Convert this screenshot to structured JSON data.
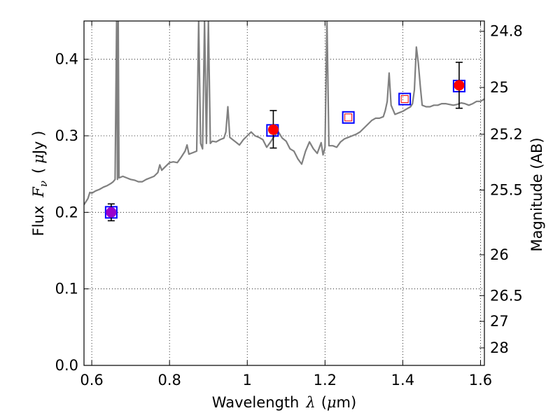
{
  "chart_data": {
    "type": "scatter",
    "xlabel": "Wavelength",
    "xlabel_symbol": "λ",
    "xlabel_unit_open": "(",
    "xlabel_unit_mu": "μ",
    "xlabel_unit_rest": "m)",
    "ylabel": "Flux",
    "ylabel_symbol": "F",
    "ylabel_subscript": "ν",
    "ylabel_unit_open": "(",
    "ylabel_unit_mu": "μ",
    "ylabel_unit_rest": "Jy )",
    "y2label": "Magnitude (AB)",
    "xlim": [
      0.58,
      1.61
    ],
    "ylim": [
      0.0,
      0.45
    ],
    "grid": true,
    "x_ticks": [
      {
        "value": 0.6,
        "label": "0.6"
      },
      {
        "value": 0.8,
        "label": "0.8"
      },
      {
        "value": 1.0,
        "label": "1"
      },
      {
        "value": 1.2,
        "label": "1.2"
      },
      {
        "value": 1.4,
        "label": "1.4"
      },
      {
        "value": 1.6,
        "label": "1.6"
      }
    ],
    "y_ticks": [
      {
        "value": 0.0,
        "label": "0.0"
      },
      {
        "value": 0.1,
        "label": "0.1"
      },
      {
        "value": 0.2,
        "label": "0.2"
      },
      {
        "value": 0.3,
        "label": "0.3"
      },
      {
        "value": 0.4,
        "label": "0.4"
      }
    ],
    "y2_ticks": [
      {
        "value": 24.8,
        "label": "24.8"
      },
      {
        "value": 25.0,
        "label": "25"
      },
      {
        "value": 25.2,
        "label": "25.2"
      },
      {
        "value": 25.5,
        "label": "25.5"
      },
      {
        "value": 26.0,
        "label": "26"
      },
      {
        "value": 26.5,
        "label": "26.5"
      },
      {
        "value": 27.0,
        "label": "27"
      },
      {
        "value": 28.0,
        "label": "28"
      }
    ],
    "series": [
      {
        "kind": "line",
        "color": "#808080",
        "points": [
          [
            0.58,
            0.21
          ],
          [
            0.59,
            0.218
          ],
          [
            0.595,
            0.226
          ],
          [
            0.6,
            0.225
          ],
          [
            0.61,
            0.228
          ],
          [
            0.62,
            0.23
          ],
          [
            0.63,
            0.233
          ],
          [
            0.64,
            0.235
          ],
          [
            0.65,
            0.238
          ],
          [
            0.655,
            0.24
          ],
          [
            0.66,
            0.243
          ],
          [
            0.664,
            0.45
          ],
          [
            0.666,
            0.243
          ],
          [
            0.668,
            0.45
          ],
          [
            0.67,
            0.245
          ],
          [
            0.68,
            0.247
          ],
          [
            0.69,
            0.245
          ],
          [
            0.7,
            0.243
          ],
          [
            0.71,
            0.242
          ],
          [
            0.72,
            0.24
          ],
          [
            0.73,
            0.24
          ],
          [
            0.74,
            0.243
          ],
          [
            0.75,
            0.245
          ],
          [
            0.76,
            0.247
          ],
          [
            0.77,
            0.252
          ],
          [
            0.775,
            0.262
          ],
          [
            0.78,
            0.255
          ],
          [
            0.79,
            0.26
          ],
          [
            0.8,
            0.265
          ],
          [
            0.81,
            0.266
          ],
          [
            0.82,
            0.265
          ],
          [
            0.83,
            0.272
          ],
          [
            0.84,
            0.28
          ],
          [
            0.845,
            0.288
          ],
          [
            0.85,
            0.276
          ],
          [
            0.86,
            0.278
          ],
          [
            0.87,
            0.28
          ],
          [
            0.875,
            0.45
          ],
          [
            0.88,
            0.29
          ],
          [
            0.885,
            0.283
          ],
          [
            0.89,
            0.45
          ],
          [
            0.895,
            0.29
          ],
          [
            0.9,
            0.45
          ],
          [
            0.905,
            0.29
          ],
          [
            0.91,
            0.293
          ],
          [
            0.92,
            0.292
          ],
          [
            0.93,
            0.295
          ],
          [
            0.94,
            0.297
          ],
          [
            0.945,
            0.305
          ],
          [
            0.95,
            0.338
          ],
          [
            0.955,
            0.298
          ],
          [
            0.96,
            0.296
          ],
          [
            0.97,
            0.292
          ],
          [
            0.98,
            0.288
          ],
          [
            0.99,
            0.295
          ],
          [
            1.0,
            0.3
          ],
          [
            1.01,
            0.305
          ],
          [
            1.02,
            0.3
          ],
          [
            1.03,
            0.298
          ],
          [
            1.04,
            0.295
          ],
          [
            1.05,
            0.285
          ],
          [
            1.06,
            0.292
          ],
          [
            1.07,
            0.3
          ],
          [
            1.08,
            0.305
          ],
          [
            1.09,
            0.297
          ],
          [
            1.1,
            0.293
          ],
          [
            1.11,
            0.283
          ],
          [
            1.12,
            0.28
          ],
          [
            1.13,
            0.27
          ],
          [
            1.14,
            0.263
          ],
          [
            1.15,
            0.28
          ],
          [
            1.16,
            0.292
          ],
          [
            1.17,
            0.283
          ],
          [
            1.18,
            0.277
          ],
          [
            1.19,
            0.291
          ],
          [
            1.195,
            0.275
          ],
          [
            1.2,
            0.285
          ],
          [
            1.205,
            0.45
          ],
          [
            1.21,
            0.287
          ],
          [
            1.22,
            0.287
          ],
          [
            1.23,
            0.285
          ],
          [
            1.24,
            0.292
          ],
          [
            1.25,
            0.296
          ],
          [
            1.26,
            0.298
          ],
          [
            1.27,
            0.3
          ],
          [
            1.28,
            0.302
          ],
          [
            1.29,
            0.305
          ],
          [
            1.3,
            0.31
          ],
          [
            1.31,
            0.315
          ],
          [
            1.32,
            0.32
          ],
          [
            1.33,
            0.323
          ],
          [
            1.34,
            0.323
          ],
          [
            1.35,
            0.325
          ],
          [
            1.355,
            0.333
          ],
          [
            1.36,
            0.345
          ],
          [
            1.365,
            0.382
          ],
          [
            1.37,
            0.34
          ],
          [
            1.38,
            0.328
          ],
          [
            1.39,
            0.33
          ],
          [
            1.4,
            0.332
          ],
          [
            1.41,
            0.335
          ],
          [
            1.42,
            0.338
          ],
          [
            1.425,
            0.342
          ],
          [
            1.43,
            0.36
          ],
          [
            1.435,
            0.416
          ],
          [
            1.44,
            0.395
          ],
          [
            1.445,
            0.365
          ],
          [
            1.45,
            0.34
          ],
          [
            1.46,
            0.338
          ],
          [
            1.47,
            0.338
          ],
          [
            1.48,
            0.34
          ],
          [
            1.49,
            0.34
          ],
          [
            1.5,
            0.342
          ],
          [
            1.51,
            0.342
          ],
          [
            1.52,
            0.341
          ],
          [
            1.53,
            0.34
          ],
          [
            1.54,
            0.341
          ],
          [
            1.55,
            0.343
          ],
          [
            1.56,
            0.342
          ],
          [
            1.57,
            0.34
          ],
          [
            1.58,
            0.342
          ],
          [
            1.59,
            0.345
          ],
          [
            1.6,
            0.345
          ],
          [
            1.61,
            0.348
          ]
        ]
      },
      {
        "kind": "open-square",
        "points": [
          {
            "x": 0.65,
            "y": 0.2,
            "edge": "#0000ff"
          },
          {
            "x": 1.065,
            "y": 0.307,
            "edge": "#0000ff"
          },
          {
            "x": 1.26,
            "y": 0.324,
            "edge": "#0000ff",
            "inner": "#ff0000"
          },
          {
            "x": 1.405,
            "y": 0.348,
            "edge": "#0000ff",
            "inner": "#ff0000"
          },
          {
            "x": 1.545,
            "y": 0.365,
            "edge": "#0000ff"
          }
        ]
      },
      {
        "kind": "filled-circle",
        "points": [
          {
            "x": 0.65,
            "y": 0.2,
            "yerr_low": 0.189,
            "yerr_high": 0.211,
            "color": "#9900cc"
          },
          {
            "x": 1.067,
            "y": 0.308,
            "yerr_low": 0.284,
            "yerr_high": 0.333,
            "color": "#ff0000"
          },
          {
            "x": 1.545,
            "y": 0.366,
            "yerr_low": 0.336,
            "yerr_high": 0.396,
            "color": "#ff0000"
          }
        ]
      }
    ]
  }
}
